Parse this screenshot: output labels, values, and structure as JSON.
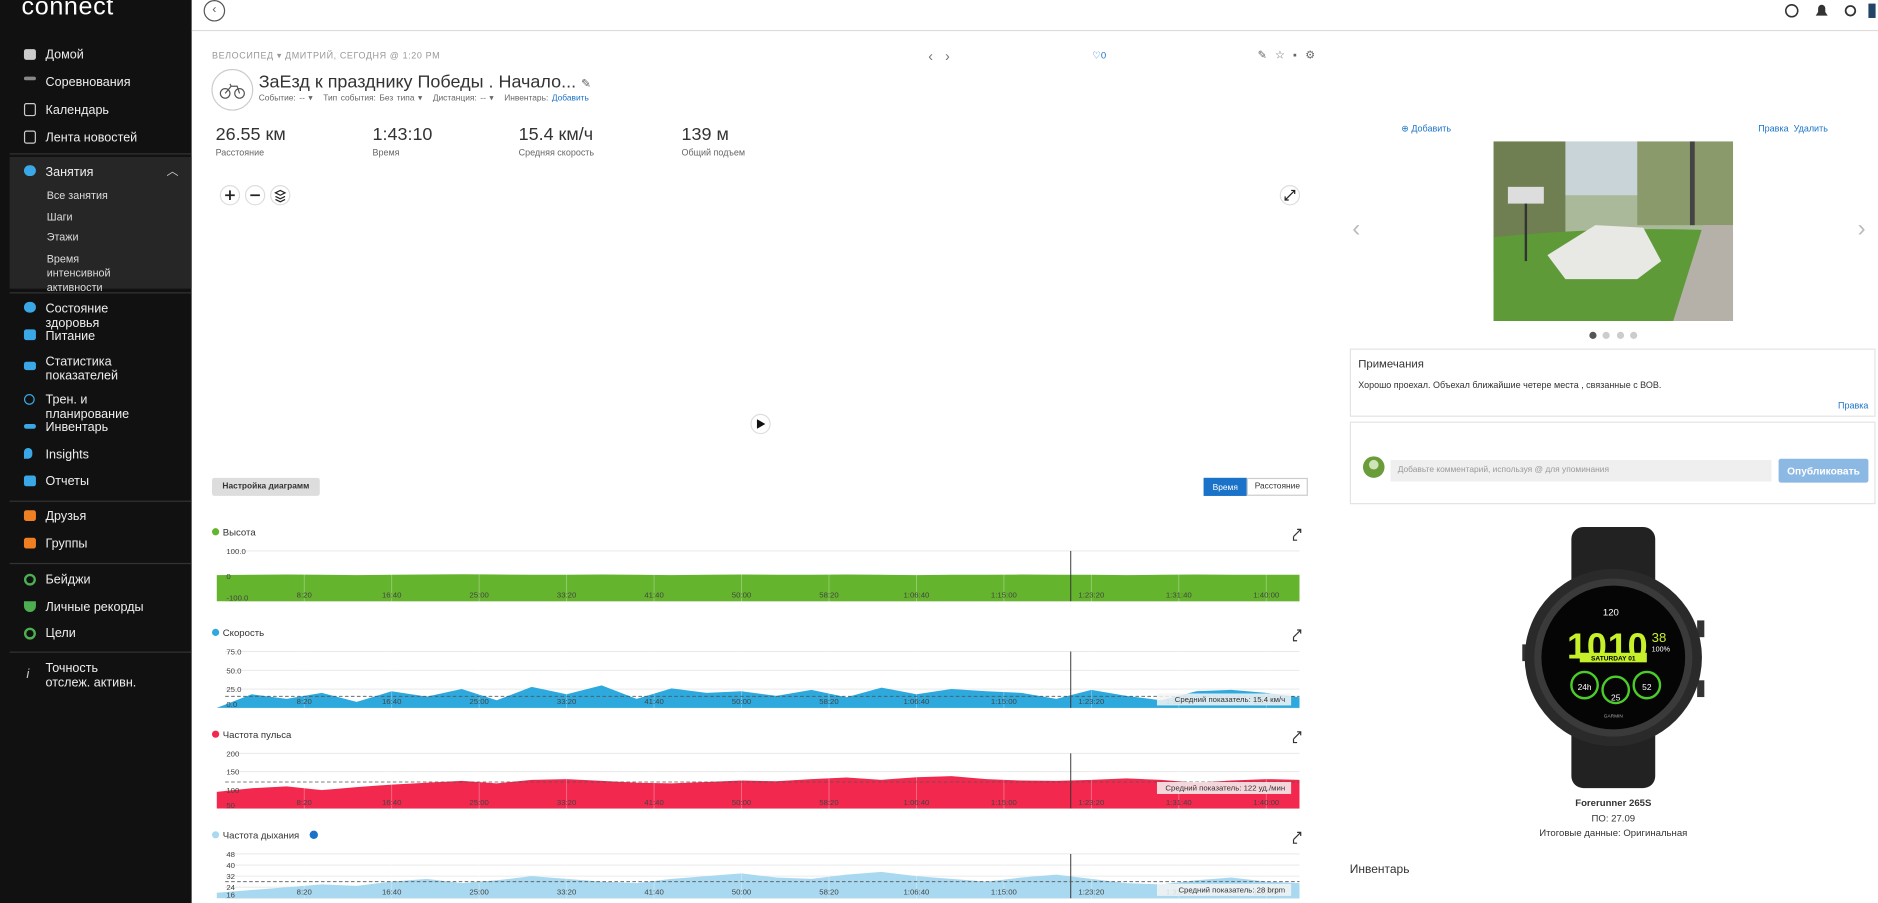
{
  "sidebar": {
    "logo": "connect",
    "items": [
      "Домой",
      "Соревнования",
      "Календарь",
      "Лента новостей",
      "Занятия"
    ],
    "sub_items": [
      "Все занятия",
      "Шаги",
      "Этажи",
      "Время интенсивной активности"
    ],
    "items2": [
      "Состояние здоровья",
      "Питание",
      "Статистика показателей",
      "Трен. и планирование",
      "Инвентарь",
      "Insights",
      "Отчеты"
    ],
    "items3": [
      "Друзья",
      "Группы"
    ],
    "items4": [
      "Бейджи",
      "Личные рекорды",
      "Цели"
    ],
    "items5": [
      "Точность отслеж. активн."
    ]
  },
  "header": {
    "type": "ВЕЛОСИПЕД",
    "owner": "ДМИТРИЙ, СЕГОДНЯ @ 1:20 PM",
    "title": "ЗаЕзд к празднику Победы . Начало...",
    "event": "Событие: --",
    "event_type": "Тип события: Без типа",
    "distance": "Дистанция: --",
    "gear": "Инвентарь:",
    "gear_add": "Добавить",
    "likes": "0"
  },
  "stats": [
    {
      "value": "26.55 км",
      "label": "Расстояние"
    },
    {
      "value": "1:43:10",
      "label": "Время"
    },
    {
      "value": "15.4 км/ч",
      "label": "Средняя скорость"
    },
    {
      "value": "139 м",
      "label": "Общий подъем"
    }
  ],
  "chart_settings": {
    "button": "Настройка диаграмм",
    "toggle": [
      "Время",
      "Расстояние"
    ]
  },
  "chart_data": [
    {
      "type": "area",
      "title": "Высота",
      "color": "#64b42d",
      "xlim": [
        0,
        6190
      ],
      "ylim": [
        -100,
        100
      ],
      "yticks": [
        {
          "value": 100,
          "label": "100.0"
        },
        0,
        {
          "value": -100,
          "label": "-100.0"
        }
      ],
      "xticks": [
        {
          "value": 500,
          "label": "8:20"
        },
        {
          "value": 1000,
          "label": "16:40"
        },
        {
          "value": 1500,
          "label": "25:00"
        },
        {
          "value": 2000,
          "label": "33:20"
        },
        {
          "value": 2500,
          "label": "41:40"
        },
        {
          "value": 3000,
          "label": "50:00"
        },
        {
          "value": 3500,
          "label": "58:20"
        },
        {
          "value": 4000,
          "label": "1:06:40"
        },
        {
          "value": 4500,
          "label": "1:15:00"
        },
        {
          "value": 5000,
          "label": "1:23:20"
        },
        {
          "value": 5500,
          "label": "1:31:40"
        },
        {
          "value": 6000,
          "label": "1:40:00"
        }
      ],
      "x": [
        0,
        200,
        400,
        600,
        800,
        1000,
        1200,
        1400,
        1600,
        1800,
        2000,
        2200,
        2400,
        2600,
        2800,
        3000,
        3200,
        3400,
        3600,
        3800,
        4000,
        4200,
        4400,
        4600,
        4800,
        5000,
        5200,
        5400,
        5600,
        5800,
        6000,
        6190
      ],
      "values": [
        4,
        5,
        6,
        5,
        4,
        5,
        6,
        7,
        6,
        5,
        5,
        6,
        5,
        4,
        5,
        6,
        5,
        5,
        6,
        5,
        4,
        5,
        5,
        6,
        5,
        5,
        4,
        5,
        6,
        5,
        5,
        5
      ]
    },
    {
      "type": "area",
      "title": "Скорость",
      "color": "#2ea9dd",
      "xlim": [
        0,
        6190
      ],
      "ylim": [
        0,
        75
      ],
      "yticks": [
        {
          "value": 75,
          "label": "75.0"
        },
        {
          "value": 50,
          "label": "50.0"
        },
        {
          "value": 25,
          "label": "25.0"
        },
        {
          "value": 0,
          "label": "0.0"
        }
      ],
      "xticks": [
        {
          "value": 500,
          "label": "8:20"
        },
        {
          "value": 1000,
          "label": "16:40"
        },
        {
          "value": 1500,
          "label": "25:00"
        },
        {
          "value": 2000,
          "label": "33:20"
        },
        {
          "value": 2500,
          "label": "41:40"
        },
        {
          "value": 3000,
          "label": "50:00"
        },
        {
          "value": 3500,
          "label": "58:20"
        },
        {
          "value": 4000,
          "label": "1:06:40"
        },
        {
          "value": 4500,
          "label": "1:15:00"
        },
        {
          "value": 5000,
          "label": "1:23:20"
        },
        {
          "value": 5500,
          "label": "1:31:40"
        },
        {
          "value": 6000,
          "label": "1:40:00"
        }
      ],
      "x": [
        0,
        200,
        400,
        600,
        800,
        1000,
        1200,
        1400,
        1600,
        1800,
        2000,
        2200,
        2400,
        2600,
        2800,
        3000,
        3200,
        3400,
        3600,
        3800,
        4000,
        4200,
        4400,
        4600,
        4800,
        5000,
        5200,
        5400,
        5600,
        5800,
        6000,
        6190
      ],
      "values": [
        0,
        18,
        12,
        20,
        8,
        22,
        15,
        25,
        10,
        28,
        18,
        30,
        12,
        26,
        20,
        22,
        16,
        24,
        14,
        27,
        18,
        25,
        22,
        20,
        12,
        24,
        16,
        10,
        22,
        24,
        20,
        14
      ],
      "average": 15.4,
      "average_label": "Средний показатель: 15.4 км/ч"
    },
    {
      "type": "area",
      "title": "Частота пульса",
      "color": "#f2284e",
      "xlim": [
        0,
        6190
      ],
      "ylim": [
        50,
        200
      ],
      "yticks": [
        200,
        150,
        100,
        50
      ],
      "xticks": [
        {
          "value": 500,
          "label": "8:20"
        },
        {
          "value": 1000,
          "label": "16:40"
        },
        {
          "value": 1500,
          "label": "25:00"
        },
        {
          "value": 2000,
          "label": "33:20"
        },
        {
          "value": 2500,
          "label": "41:40"
        },
        {
          "value": 3000,
          "label": "50:00"
        },
        {
          "value": 3500,
          "label": "58:20"
        },
        {
          "value": 4000,
          "label": "1:06:40"
        },
        {
          "value": 4500,
          "label": "1:15:00"
        },
        {
          "value": 5000,
          "label": "1:23:20"
        },
        {
          "value": 5500,
          "label": "1:31:40"
        },
        {
          "value": 6000,
          "label": "1:40:00"
        }
      ],
      "x": [
        0,
        200,
        400,
        600,
        800,
        1000,
        1200,
        1400,
        1600,
        1800,
        2000,
        2200,
        2400,
        2600,
        2800,
        3000,
        3200,
        3400,
        3600,
        3800,
        4000,
        4200,
        4400,
        4600,
        4800,
        5000,
        5200,
        5400,
        5600,
        5800,
        6000,
        6190
      ],
      "values": [
        95,
        105,
        110,
        100,
        108,
        115,
        120,
        125,
        118,
        128,
        130,
        125,
        120,
        118,
        122,
        126,
        124,
        130,
        134,
        128,
        135,
        138,
        130,
        126,
        125,
        128,
        132,
        128,
        120,
        126,
        130,
        128
      ],
      "average": 122,
      "average_label": "Средний показатель: 122 уд./мин"
    },
    {
      "type": "area",
      "title": "Частота дыхания",
      "color": "#a9d9f0",
      "xlim": [
        0,
        6190
      ],
      "ylim": [
        16,
        48
      ],
      "yticks": [
        48,
        40,
        32,
        24,
        16
      ],
      "xticks": [
        {
          "value": 500,
          "label": "8:20"
        },
        {
          "value": 1000,
          "label": "16:40"
        },
        {
          "value": 1500,
          "label": "25:00"
        },
        {
          "value": 2000,
          "label": "33:20"
        },
        {
          "value": 2500,
          "label": "41:40"
        },
        {
          "value": 3000,
          "label": "50:00"
        },
        {
          "value": 3500,
          "label": "58:20"
        },
        {
          "value": 4000,
          "label": "1:06:40"
        },
        {
          "value": 4500,
          "label": "1:15:00"
        },
        {
          "value": 5000,
          "label": "1:23:20"
        },
        {
          "value": 5500,
          "label": "1:31:40"
        },
        {
          "value": 6000,
          "label": "1:40:00"
        }
      ],
      "x": [
        0,
        200,
        400,
        600,
        800,
        1000,
        1200,
        1400,
        1600,
        1800,
        2000,
        2200,
        2400,
        2600,
        2800,
        3000,
        3200,
        3400,
        3600,
        3800,
        4000,
        4200,
        4400,
        4600,
        4800,
        5000,
        5200,
        5400,
        5600,
        5800,
        6000,
        6190
      ],
      "values": [
        20,
        22,
        24,
        26,
        25,
        28,
        30,
        27,
        29,
        32,
        30,
        28,
        27,
        30,
        32,
        34,
        31,
        30,
        33,
        35,
        32,
        30,
        28,
        31,
        33,
        30,
        27,
        26,
        29,
        31,
        28,
        27
      ],
      "average": 28,
      "average_label": "Средний показатель: 28 brpm"
    }
  ],
  "photos": {
    "add": "Добавить",
    "edit": "Правка",
    "delete": "Удалить"
  },
  "notes": {
    "title": "Примечания",
    "text": "Хорошо проехал. Объехал ближайшие четере места , связанные с ВОВ.",
    "edit": "Правка"
  },
  "comment": {
    "placeholder": "Добавьте комментарий, используя @ для упоминания",
    "button": "Опубликовать"
  },
  "device": {
    "name": "Forerunner 265S",
    "firmware": "ПО: 27.09",
    "source": "Итоговые данные: Оригинальная",
    "watch_face": {
      "hr": "120",
      "hour": "10",
      "minute": "10",
      "seconds": "38",
      "battery": "100%",
      "date": "SATURDAY 01",
      "left": "24h",
      "center": "25",
      "right": "52",
      "brand": "GARMIN"
    }
  },
  "inventory": {
    "title": "Инвентарь"
  }
}
